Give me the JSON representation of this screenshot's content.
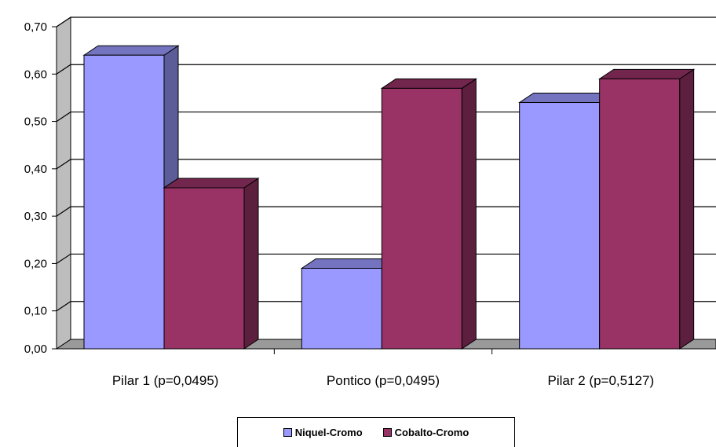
{
  "chart_data": {
    "type": "bar",
    "title": "",
    "xlabel": "",
    "ylabel": "",
    "categories": [
      "Pilar 1 (p=0,0495)",
      "Pontico (p=0,0495)",
      "Pilar 2 (p=0,5127)"
    ],
    "series": [
      {
        "name": "Niquel-Cromo",
        "values": [
          0.62,
          0.17,
          0.52
        ],
        "color": "#9999FF"
      },
      {
        "name": "Cobalto-Cromo",
        "values": [
          0.34,
          0.55,
          0.57
        ],
        "color": "#993366"
      }
    ],
    "ylim": [
      0,
      0.7
    ],
    "yticks": [
      "0,00",
      "0,10",
      "0,20",
      "0,30",
      "0,40",
      "0,50",
      "0,60",
      "0,70"
    ],
    "grid": true,
    "legend_position": "bottom",
    "style": "3d-clustered"
  }
}
